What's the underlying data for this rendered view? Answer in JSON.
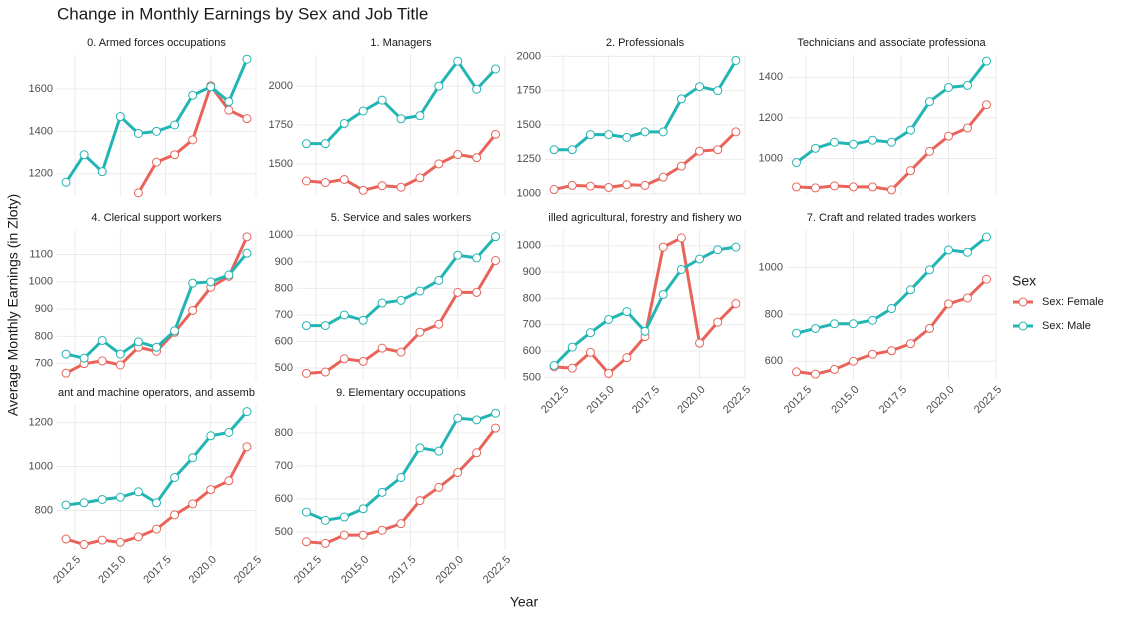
{
  "chart_data": {
    "type": "line",
    "title": "Change in Monthly Earnings by Sex and Job Title",
    "x_label": "Year",
    "y_label": "Average Monthly Earnings (in Zloty)",
    "x": [
      2012,
      2013,
      2014,
      2015,
      2016,
      2017,
      2018,
      2019,
      2020,
      2021,
      2022
    ],
    "xlim": [
      2011.5,
      2022.5
    ],
    "xticks": [
      2012.5,
      {
        "value": 2015,
        "label": "2015.0"
      },
      2017.5,
      {
        "value": 2020,
        "label": "2020.0"
      },
      2022.5
    ],
    "grid": true,
    "legend": {
      "title": "Sex",
      "position": "right",
      "entries": [
        {
          "name": "Sex: Female",
          "color": "#e8645a"
        },
        {
          "name": "Sex: Male",
          "color": "#22b5b3"
        }
      ]
    },
    "facets": [
      {
        "title": "0. Armed forces occupations",
        "ylim": [
          1100,
          1760
        ],
        "yticks": [
          1200,
          1400,
          1600
        ],
        "series": [
          {
            "values": [
              null,
              null,
              null,
              null,
              1110,
              1255,
              1290,
              1360,
              1615,
              1500,
              1460
            ]
          },
          {
            "values": [
              1160,
              1290,
              1210,
              1470,
              1390,
              1400,
              1430,
              1570,
              1610,
              1540,
              1740
            ]
          }
        ]
      },
      {
        "title": "1. Managers",
        "ylim": [
          1300,
          2200
        ],
        "yticks": [
          1500,
          1750,
          2000
        ],
        "series": [
          {
            "values": [
              1390,
              1380,
              1400,
              1330,
              1360,
              1350,
              1410,
              1500,
              1560,
              1540,
              1690
            ]
          },
          {
            "values": [
              1630,
              1630,
              1760,
              1840,
              1910,
              1790,
              1810,
              2000,
              2160,
              1980,
              2110
            ]
          }
        ]
      },
      {
        "title": "2. Professionals",
        "ylim": [
          990,
          2010
        ],
        "yticks": [
          1000,
          1250,
          1500,
          1750,
          2000
        ],
        "series": [
          {
            "values": [
              1030,
              1060,
              1055,
              1045,
              1065,
              1060,
              1120,
              1200,
              1310,
              1320,
              1450
            ]
          },
          {
            "values": [
              1320,
              1320,
              1430,
              1430,
              1410,
              1450,
              1450,
              1690,
              1780,
              1750,
              1970
            ]
          }
        ]
      },
      {
        "title": "Technicians and associate professiona",
        "ylim": [
          820,
          1510
        ],
        "yticks": [
          1000,
          1200,
          1400
        ],
        "series": [
          {
            "values": [
              860,
              855,
              865,
              860,
              860,
              845,
              940,
              1035,
              1110,
              1150,
              1265
            ]
          },
          {
            "values": [
              980,
              1050,
              1080,
              1070,
              1090,
              1080,
              1140,
              1280,
              1350,
              1360,
              1480
            ]
          }
        ]
      },
      {
        "title": "4. Clerical support workers",
        "ylim": [
          640,
          1190
        ],
        "yticks": [
          700,
          800,
          900,
          1000,
          1100
        ],
        "series": [
          {
            "values": [
              665,
              700,
              710,
              695,
              760,
              745,
              815,
              895,
              980,
              1020,
              1165
            ]
          },
          {
            "values": [
              735,
              720,
              785,
              735,
              780,
              760,
              820,
              995,
              1000,
              1025,
              1105
            ]
          }
        ]
      },
      {
        "title": "5. Service and sales workers",
        "ylim": [
          455,
          1020
        ],
        "yticks": [
          500,
          600,
          700,
          800,
          900,
          1000
        ],
        "series": [
          {
            "values": [
              480,
              485,
              535,
              525,
              575,
              560,
              635,
              665,
              785,
              785,
              905
            ]
          },
          {
            "values": [
              660,
              660,
              700,
              680,
              745,
              755,
              790,
              830,
              925,
              915,
              995
            ]
          }
        ]
      },
      {
        "title": "illed agricultural, forestry and fishery wo",
        "ylim": [
          490,
          1060
        ],
        "yticks": [
          500,
          600,
          700,
          800,
          900,
          1000
        ],
        "series": [
          {
            "values": [
              540,
              535,
              595,
              515,
              575,
              655,
              995,
              1030,
              630,
              710,
              780
            ]
          },
          {
            "values": [
              545,
              615,
              670,
              720,
              750,
              675,
              815,
              910,
              950,
              985,
              995
            ]
          }
        ]
      },
      {
        "title": "7. Craft and related trades workers",
        "ylim": [
          520,
          1160
        ],
        "yticks": [
          600,
          800,
          1000
        ],
        "series": [
          {
            "values": [
              555,
              545,
              565,
              600,
              630,
              645,
              675,
              740,
              845,
              870,
              950
            ]
          },
          {
            "values": [
              720,
              740,
              760,
              760,
              775,
              825,
              905,
              990,
              1075,
              1065,
              1130
            ]
          }
        ]
      },
      {
        "title": "ant and machine operators, and assemb",
        "ylim": [
          620,
          1280
        ],
        "yticks": [
          800,
          1000,
          1200
        ],
        "series": [
          {
            "values": [
              670,
              645,
              665,
              655,
              680,
              715,
              780,
              830,
              895,
              935,
              1090
            ]
          },
          {
            "values": [
              825,
              835,
              850,
              860,
              885,
              835,
              950,
              1040,
              1140,
              1155,
              1250
            ]
          }
        ]
      },
      {
        "title": "9. Elementary occupations",
        "ylim": [
          445,
          885
        ],
        "yticks": [
          500,
          600,
          700,
          800
        ],
        "series": [
          {
            "values": [
              470,
              465,
              490,
              490,
              505,
              525,
              595,
              635,
              680,
              740,
              815
            ]
          },
          {
            "values": [
              560,
              535,
              545,
              570,
              620,
              665,
              755,
              745,
              845,
              840,
              860
            ]
          }
        ]
      }
    ]
  }
}
